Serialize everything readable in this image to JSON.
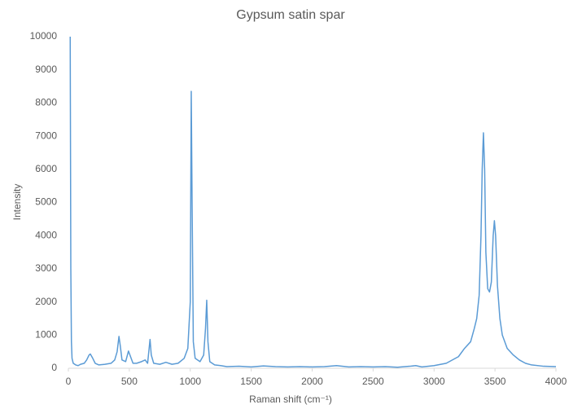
{
  "chart_data": {
    "type": "line",
    "title": "Gypsum satin spar",
    "x_label": "Raman shift (cm⁻¹)",
    "y_label": "Intensity",
    "x": [
      15,
      20,
      25,
      30,
      40,
      60,
      80,
      100,
      130,
      150,
      170,
      180,
      200,
      220,
      250,
      300,
      350,
      380,
      400,
      415,
      425,
      440,
      470,
      493,
      510,
      530,
      560,
      600,
      630,
      650,
      670,
      680,
      700,
      750,
      800,
      850,
      900,
      950,
      980,
      1000,
      1008,
      1015,
      1025,
      1040,
      1080,
      1110,
      1125,
      1135,
      1145,
      1160,
      1200,
      1250,
      1300,
      1400,
      1500,
      1600,
      1700,
      1800,
      1900,
      2000,
      2100,
      2200,
      2300,
      2400,
      2500,
      2600,
      2700,
      2800,
      2850,
      2900,
      3000,
      3100,
      3200,
      3250,
      3300,
      3330,
      3350,
      3370,
      3385,
      3395,
      3405,
      3415,
      3425,
      3440,
      3455,
      3470,
      3485,
      3495,
      3505,
      3520,
      3540,
      3560,
      3600,
      3650,
      3700,
      3750,
      3800,
      3900,
      4000
    ],
    "series": [
      {
        "name": "Intensity",
        "color": "#5b9bd5",
        "values": [
          10000,
          3000,
          800,
          300,
          150,
          100,
          80,
          120,
          150,
          250,
          400,
          430,
          300,
          150,
          100,
          120,
          150,
          250,
          500,
          960,
          700,
          250,
          200,
          520,
          350,
          150,
          150,
          200,
          250,
          150,
          870,
          400,
          150,
          120,
          180,
          120,
          150,
          300,
          600,
          2000,
          8350,
          5000,
          800,
          300,
          200,
          400,
          1200,
          2050,
          800,
          200,
          100,
          80,
          50,
          60,
          40,
          70,
          50,
          40,
          50,
          40,
          50,
          80,
          40,
          50,
          40,
          50,
          30,
          60,
          80,
          40,
          80,
          150,
          350,
          600,
          800,
          1200,
          1500,
          2200,
          4000,
          6000,
          7100,
          6000,
          3500,
          2400,
          2300,
          2600,
          4000,
          4450,
          4000,
          2500,
          1500,
          1000,
          600,
          400,
          250,
          150,
          100,
          60,
          50
        ]
      }
    ],
    "xlim": [
      0,
      4000
    ],
    "xticks": [
      0,
      500,
      1000,
      1500,
      2000,
      2500,
      3000,
      3500,
      4000
    ],
    "ylim": [
      0,
      10000
    ],
    "yticks": [
      0,
      1000,
      2000,
      3000,
      4000,
      5000,
      6000,
      7000,
      8000,
      9000,
      10000
    ],
    "grid": false
  }
}
